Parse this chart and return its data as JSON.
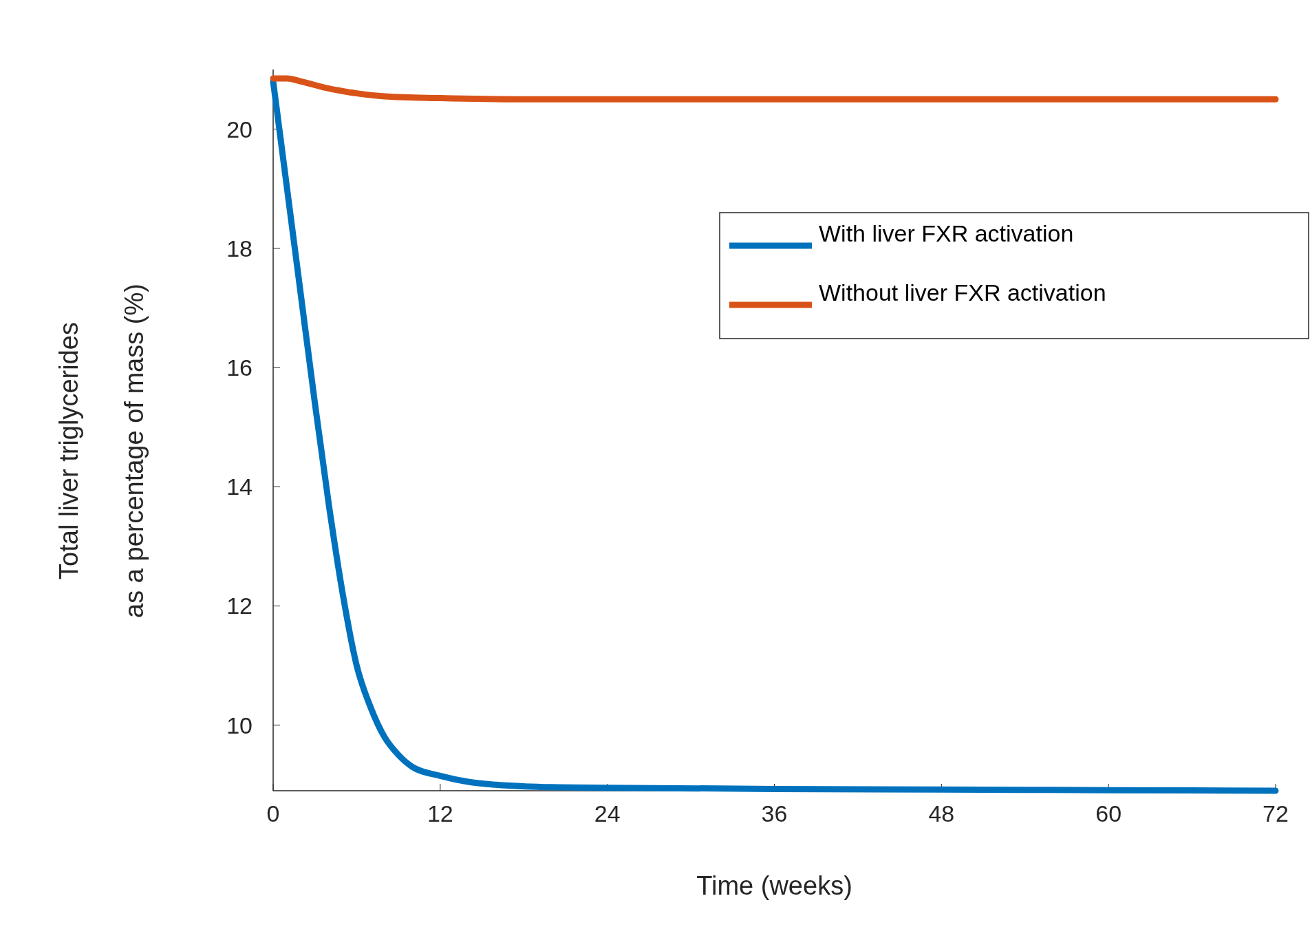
{
  "chart_data": {
    "type": "line",
    "xlabel": "Time (weeks)",
    "ylabel": "Total liver triglycerides\nas a percentage of mass (%)",
    "xlim": [
      0,
      72
    ],
    "xticks": [
      0,
      12,
      24,
      36,
      48,
      60,
      72
    ],
    "ylim": [
      8.9,
      21
    ],
    "yticks": [
      10,
      12,
      14,
      16,
      18,
      20
    ],
    "grid": false,
    "legend": "top right",
    "line_style": "solid",
    "marker": "none",
    "series": [
      {
        "name": "With liver FXR activation",
        "color": "#0072bd",
        "x": [
          0,
          1,
          2,
          3,
          4,
          5,
          6,
          7,
          8,
          9,
          10,
          12,
          14,
          16,
          20,
          24,
          36,
          48,
          60,
          72
        ],
        "values": [
          20.8,
          19.0,
          17.2,
          15.4,
          13.7,
          12.2,
          11.0,
          10.3,
          9.8,
          9.5,
          9.3,
          9.15,
          9.05,
          9.0,
          8.96,
          8.95,
          8.93,
          8.92,
          8.91,
          8.9
        ]
      },
      {
        "name": "Without liver FXR activation",
        "color": "#d95319",
        "x": [
          0,
          1,
          2,
          4,
          6,
          8,
          12,
          18,
          24,
          36,
          48,
          60,
          72
        ],
        "values": [
          20.85,
          20.85,
          20.8,
          20.68,
          20.6,
          20.55,
          20.52,
          20.5,
          20.5,
          20.5,
          20.5,
          20.5,
          20.5
        ]
      }
    ]
  }
}
